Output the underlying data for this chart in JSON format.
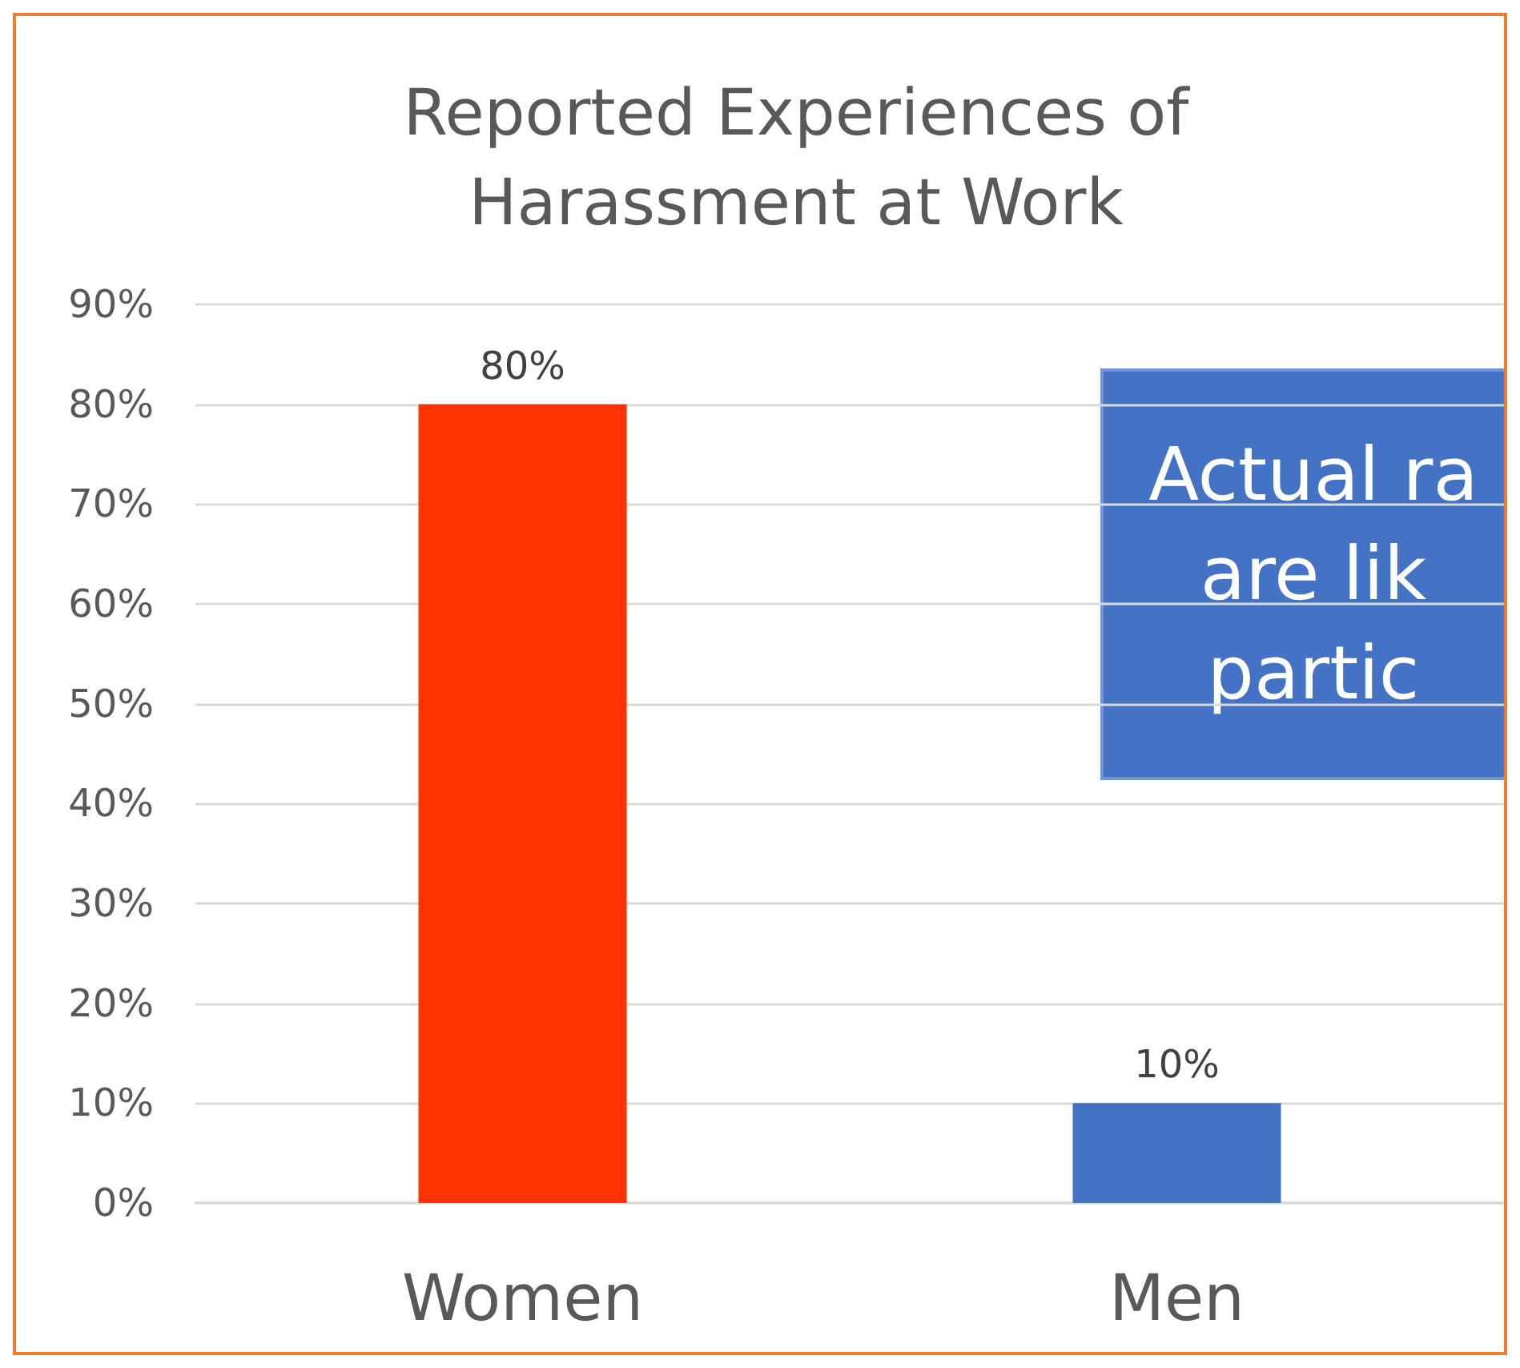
{
  "chart_data": {
    "type": "bar",
    "title": "Reported Experiences of\nHarassment at Work",
    "categories": [
      "Women",
      "Men"
    ],
    "values": [
      80,
      10
    ],
    "colors": [
      "#ff3300",
      "#4472c4"
    ],
    "value_labels": [
      "80%",
      "10%"
    ],
    "ylim": [
      0,
      90
    ],
    "yticks": [
      {
        "value": 0,
        "label": "0%"
      },
      {
        "value": 10,
        "label": "10%"
      },
      {
        "value": 20,
        "label": "20%"
      },
      {
        "value": 30,
        "label": "30%"
      },
      {
        "value": 40,
        "label": "40%"
      },
      {
        "value": 50,
        "label": "50%"
      },
      {
        "value": 60,
        "label": "60%"
      },
      {
        "value": 70,
        "label": "70%"
      },
      {
        "value": 80,
        "label": "80%"
      },
      {
        "value": 90,
        "label": "90%"
      }
    ],
    "grid": "y",
    "annotations": [
      "Actual ra\nare lik\npartic"
    ]
  }
}
